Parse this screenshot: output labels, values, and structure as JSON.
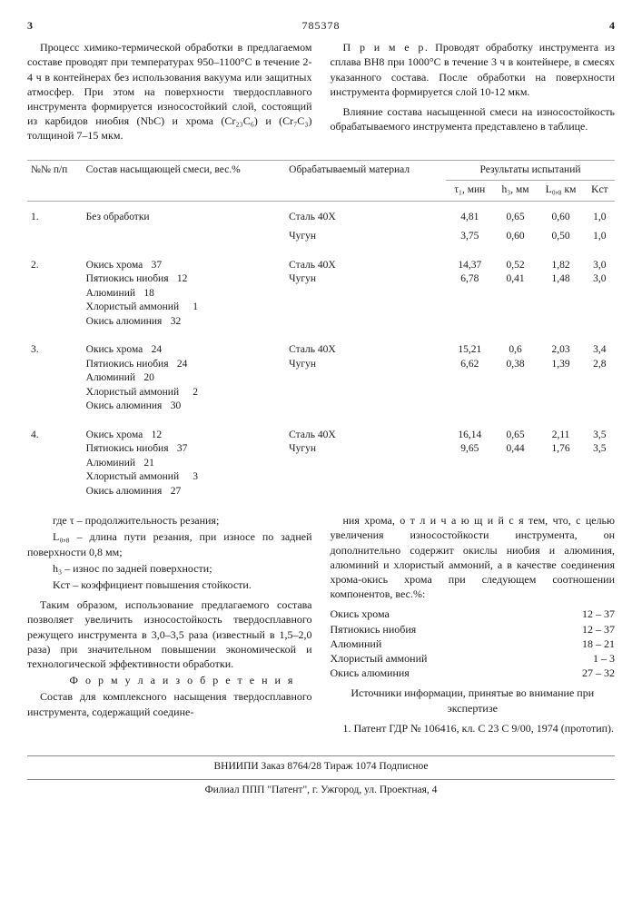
{
  "header": {
    "left_page": "3",
    "patent_no": "785378",
    "right_page": "4"
  },
  "left_col": {
    "p1": "Процесс химико-термической обработки в предлагаемом составе проводят при температурах 950–1100°С в течение 2-4 ч в контейнерах без использования вакуума или защитных атмосфер. При этом на поверхности твердосплавного инструмента формируется износостойкий слой, состоящий из карбидов ниобия (NbC) и хрома (Cr₂₃C₆) и (Cr₇C₃) толщиной 7–15 мкм."
  },
  "right_col": {
    "p1_label": "П р и м е р.",
    "p1": " Проводят обработку инструмента из сплава ВН8 при 1000°С в течение 3 ч в контейнере, в смесях указанного состава. После обработки на поверхности инструмента формируется слой 10-12 мкм.",
    "p2": "Влияние состава насыщенной смеси на износостойкость обрабатываемого инструмента представлено в таблице."
  },
  "table": {
    "head": {
      "c1": "№№ п/п",
      "c2": "Состав насыщающей смеси, вес.%",
      "c3": "Обрабатываемый материал",
      "c4_group": "Результаты испытаний",
      "c4a": "τ₁, мин",
      "c4b": "h₃, мм",
      "c4c": "L₀,₈ км",
      "c4d": "Kст"
    },
    "rows": [
      {
        "n": "1.",
        "mix": [
          [
            "Без обработки",
            ""
          ]
        ],
        "mat": [
          "Сталь 40Х",
          "Чугун"
        ],
        "t": [
          "4,81",
          "3,75"
        ],
        "h": [
          "0,65",
          "0,60"
        ],
        "l": [
          "0,60",
          "0,50"
        ],
        "k": [
          "1,0",
          "1,0"
        ]
      },
      {
        "n": "2.",
        "mix": [
          [
            "Окись хрома",
            "37"
          ],
          [
            "Пятиокись ниобия",
            "12"
          ],
          [
            "Алюминий",
            "18"
          ],
          [
            "Хлористый аммоний",
            "1"
          ],
          [
            "Окись алюминия",
            "32"
          ]
        ],
        "mat": [
          "Сталь 40Х",
          "Чугун"
        ],
        "t": [
          "14,37",
          "6,78"
        ],
        "h": [
          "0,52",
          "0,41"
        ],
        "l": [
          "1,82",
          "1,48"
        ],
        "k": [
          "3,0",
          "3,0"
        ]
      },
      {
        "n": "3.",
        "mix": [
          [
            "Окись хрома",
            "24"
          ],
          [
            "Пятиокись ниобия",
            "24"
          ],
          [
            "Алюминий",
            "20"
          ],
          [
            "Хлористый аммоний",
            "2"
          ],
          [
            "Окись алюминия",
            "30"
          ]
        ],
        "mat": [
          "Сталь 40Х",
          "Чугун"
        ],
        "t": [
          "15,21",
          "6,62"
        ],
        "h": [
          "0,6",
          "0,38"
        ],
        "l": [
          "2,03",
          "1,39"
        ],
        "k": [
          "3,4",
          "2,8"
        ]
      },
      {
        "n": "4.",
        "mix": [
          [
            "Окись хрома",
            "12"
          ],
          [
            "Пятиокись ниобия",
            "37"
          ],
          [
            "Алюминий",
            "21"
          ],
          [
            "Хлористый аммоний",
            "3"
          ],
          [
            "Окись алюминия",
            "27"
          ]
        ],
        "mat": [
          "Сталь 40Х",
          "Чугун"
        ],
        "t": [
          "16,14",
          "9,65"
        ],
        "h": [
          "0,65",
          "0,44"
        ],
        "l": [
          "2,11",
          "1,76"
        ],
        "k": [
          "3,5",
          "3,5"
        ]
      }
    ]
  },
  "defs": {
    "d1": "где τ – продолжительность резания;",
    "d2": "L₀,₈ – длина пути резания, при износе по задней поверхности 0,8 мм;",
    "d3": "h₃ – износ по задней поверхности;",
    "d4": "Kст – коэффициент повышения стойкости."
  },
  "bottom_left": {
    "p1": "Таким образом, использование предлагаемого состава позволяет увеличить износостойкость твердосплавного режущего инструмента в 3,0–3,5 раза (известный в 1,5–2,0 раза) при значительном повышении экономической и технологической эффективности обработки.",
    "formula_title": "Ф о р м у л а  и з о б р е т е н и я",
    "p2": "Состав для комплексного насыщения твердосплавного инструмента, содержащий соедине-"
  },
  "bottom_right": {
    "p1": "ния хрома, о т л и ч а ю щ и й с я  тем, что, с целью увеличения износостойкости инструмента, он дополнительно содержит окислы ниобия и алюминия, алюминий и хлористый аммоний, а в качестве соединения хрома-окись хрома при следующем соотношении компонентов, вес.%:",
    "list": [
      [
        "Окись хрома",
        "12 – 37"
      ],
      [
        "Пятиокись ниобия",
        "12 – 37"
      ],
      [
        "Алюминий",
        "18 – 21"
      ],
      [
        "Хлористый аммоний",
        "1 – 3"
      ],
      [
        "Окись алюминия",
        "27 – 32"
      ]
    ],
    "src_title": "Источники информации, принятые во внимание при экспертизе",
    "src1": "1. Патент ГДР № 106416, кл. С 23 С 9/00, 1974 (прототип)."
  },
  "footer": {
    "line1": "ВНИИПИ    Заказ 8764/28    Тираж 1074    Подписное",
    "line2": "Филиал ППП \"Патент\", г. Ужгород, ул. Проектная, 4"
  }
}
